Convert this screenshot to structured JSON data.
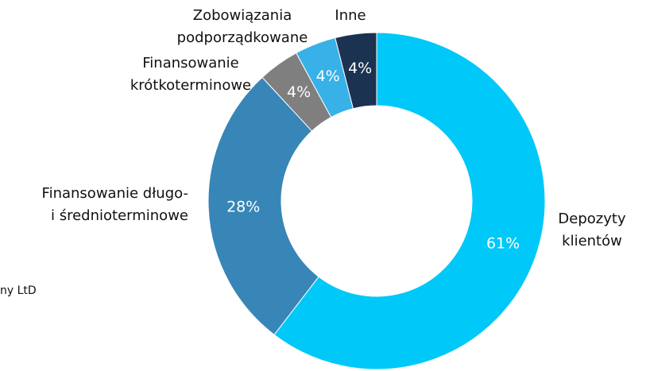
{
  "chart_data": {
    "type": "donut",
    "categories": [
      [
        "Depozyty",
        "klientów"
      ],
      [
        "Finansowanie długo-",
        "i średnioterminowe"
      ],
      [
        "Finansowanie",
        "krótkoterminowe"
      ],
      [
        "Zobowiązania",
        "podporządkowane"
      ],
      [
        "Inne"
      ]
    ],
    "values": [
      61,
      28,
      4,
      4,
      4
    ],
    "value_labels": [
      "61%",
      "28%",
      "4%",
      "4%",
      "4%"
    ],
    "colors": [
      "#00c8f8",
      "#3886b7",
      "#7f7f7f",
      "#37b1e8",
      "#1b3250"
    ],
    "footnote": "ny LtD"
  }
}
